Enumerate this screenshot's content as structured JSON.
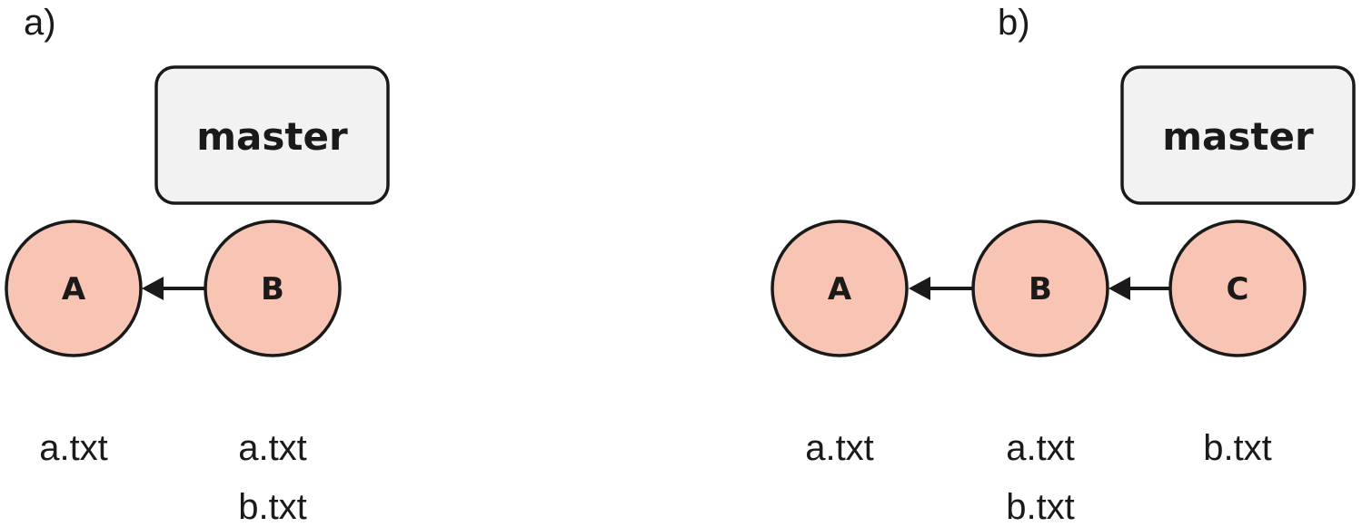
{
  "panels": [
    {
      "label": "a)",
      "branch": "master",
      "commits": [
        {
          "id": "A",
          "files": [
            "a.txt"
          ]
        },
        {
          "id": "B",
          "files": [
            "a.txt",
            "b.txt"
          ]
        }
      ]
    },
    {
      "label": "b)",
      "branch": "master",
      "commits": [
        {
          "id": "A",
          "files": [
            "a.txt"
          ]
        },
        {
          "id": "B",
          "files": [
            "a.txt",
            "b.txt"
          ]
        },
        {
          "id": "C",
          "files": [
            "b.txt"
          ]
        }
      ]
    }
  ],
  "colors": {
    "commit_fill": "#f8c4b3",
    "branch_fill": "#f2f2f2",
    "stroke": "#1a1a1a"
  }
}
